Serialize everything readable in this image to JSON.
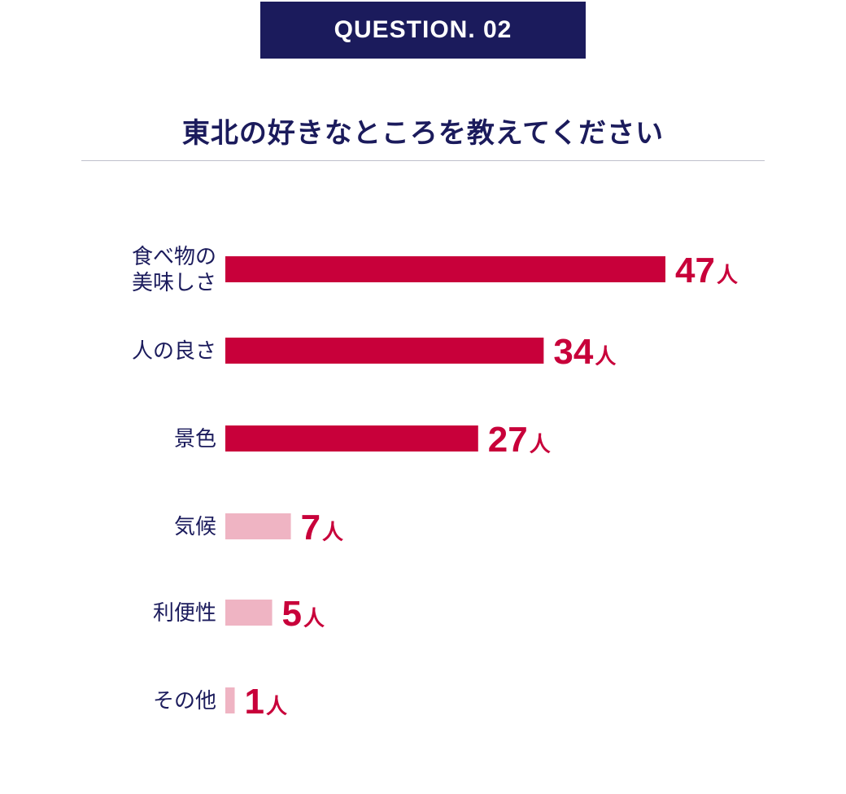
{
  "badge": {
    "label": "QUESTION. 02"
  },
  "question": {
    "title": "東北の好きなところを教えてください"
  },
  "colors": {
    "badge_bg": "#1b1b5c",
    "title": "#1b1b5c",
    "bar_primary": "#c8003a",
    "bar_secondary": "#efb4c3",
    "value_text": "#c8003a",
    "label_text": "#1b1b5c"
  },
  "chart_data": {
    "type": "bar",
    "orientation": "horizontal",
    "categories": [
      [
        "食べ物の",
        "美味しさ"
      ],
      [
        "人の良さ"
      ],
      [
        "景色"
      ],
      [
        "気候"
      ],
      [
        "利便性"
      ],
      [
        "その他"
      ]
    ],
    "values": [
      47,
      34,
      27,
      7,
      5,
      1
    ],
    "unit": "人",
    "highlight_top": 3,
    "title": "東北の好きなところを教えてください",
    "xlabel": "",
    "ylabel": "",
    "grid": false,
    "legend": "none"
  }
}
